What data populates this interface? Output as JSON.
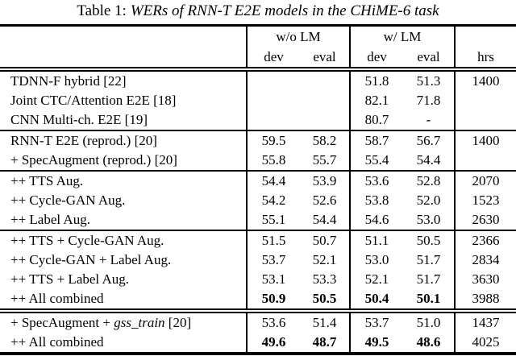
{
  "title": {
    "prefix": "Table 1:",
    "text": "WERs of RNN-T E2E models in the CHiME-6 task"
  },
  "table": {
    "col_groups": [
      {
        "label": "w/o LM"
      },
      {
        "label": "w/ LM"
      }
    ],
    "sub_headers": [
      "dev",
      "eval",
      "dev",
      "eval"
    ],
    "hours_header": "hrs",
    "groups": [
      {
        "rows": [
          {
            "label": "TDNN-F hybrid [22]",
            "wo_dev": "",
            "wo_eval": "",
            "w_dev": "51.8",
            "w_eval": "51.3",
            "hrs": "1400"
          },
          {
            "label": "Joint CTC/Attention E2E [18]",
            "wo_dev": "",
            "wo_eval": "",
            "w_dev": "82.1",
            "w_eval": "71.8",
            "hrs": ""
          },
          {
            "label": "CNN Multi-ch. E2E [19]",
            "wo_dev": "",
            "wo_eval": "",
            "w_dev": "80.7",
            "w_eval": "-",
            "hrs": ""
          }
        ]
      },
      {
        "rows": [
          {
            "label": "RNN-T E2E (reprod.) [20]",
            "wo_dev": "59.5",
            "wo_eval": "58.2",
            "w_dev": "58.7",
            "w_eval": "56.7",
            "hrs": "1400"
          },
          {
            "label": "+ SpecAugment (reprod.) [20]",
            "wo_dev": "55.8",
            "wo_eval": "55.7",
            "w_dev": "55.4",
            "w_eval": "54.4",
            "hrs": ""
          }
        ]
      },
      {
        "rows": [
          {
            "label": "++ TTS Aug.",
            "wo_dev": "54.4",
            "wo_eval": "53.9",
            "w_dev": "53.6",
            "w_eval": "52.8",
            "hrs": "2070"
          },
          {
            "label": "++ Cycle-GAN Aug.",
            "wo_dev": "54.2",
            "wo_eval": "52.6",
            "w_dev": "53.8",
            "w_eval": "52.0",
            "hrs": "1523"
          },
          {
            "label": "++ Label Aug.",
            "wo_dev": "55.1",
            "wo_eval": "54.4",
            "w_dev": "54.6",
            "w_eval": "53.0",
            "hrs": "2630"
          }
        ]
      },
      {
        "rows": [
          {
            "label": "++ TTS + Cycle-GAN Aug.",
            "wo_dev": "51.5",
            "wo_eval": "50.7",
            "w_dev": "51.1",
            "w_eval": "50.5",
            "hrs": "2366"
          },
          {
            "label": "++ Cycle-GAN + Label Aug.",
            "wo_dev": "53.7",
            "wo_eval": "52.1",
            "w_dev": "53.0",
            "w_eval": "51.7",
            "hrs": "2834"
          },
          {
            "label": "++ TTS + Label Aug.",
            "wo_dev": "53.1",
            "wo_eval": "53.3",
            "w_dev": "52.1",
            "w_eval": "51.7",
            "hrs": "3630"
          },
          {
            "label": "++ All combined",
            "wo_dev": "50.9",
            "wo_eval": "50.5",
            "w_dev": "50.4",
            "w_eval": "50.1",
            "hrs": "3988"
          }
        ]
      },
      {
        "rows": [
          {
            "label_prefix": "+ SpecAugment + ",
            "label_italic": "gss_train",
            "label_suffix": " [20]",
            "wo_dev": "53.6",
            "wo_eval": "51.4",
            "w_dev": "53.7",
            "w_eval": "51.0",
            "hrs": "1437"
          },
          {
            "label": "++ All combined",
            "wo_dev": "49.6",
            "wo_eval": "48.7",
            "w_dev": "49.5",
            "w_eval": "48.6",
            "hrs": "4025"
          }
        ]
      }
    ]
  }
}
